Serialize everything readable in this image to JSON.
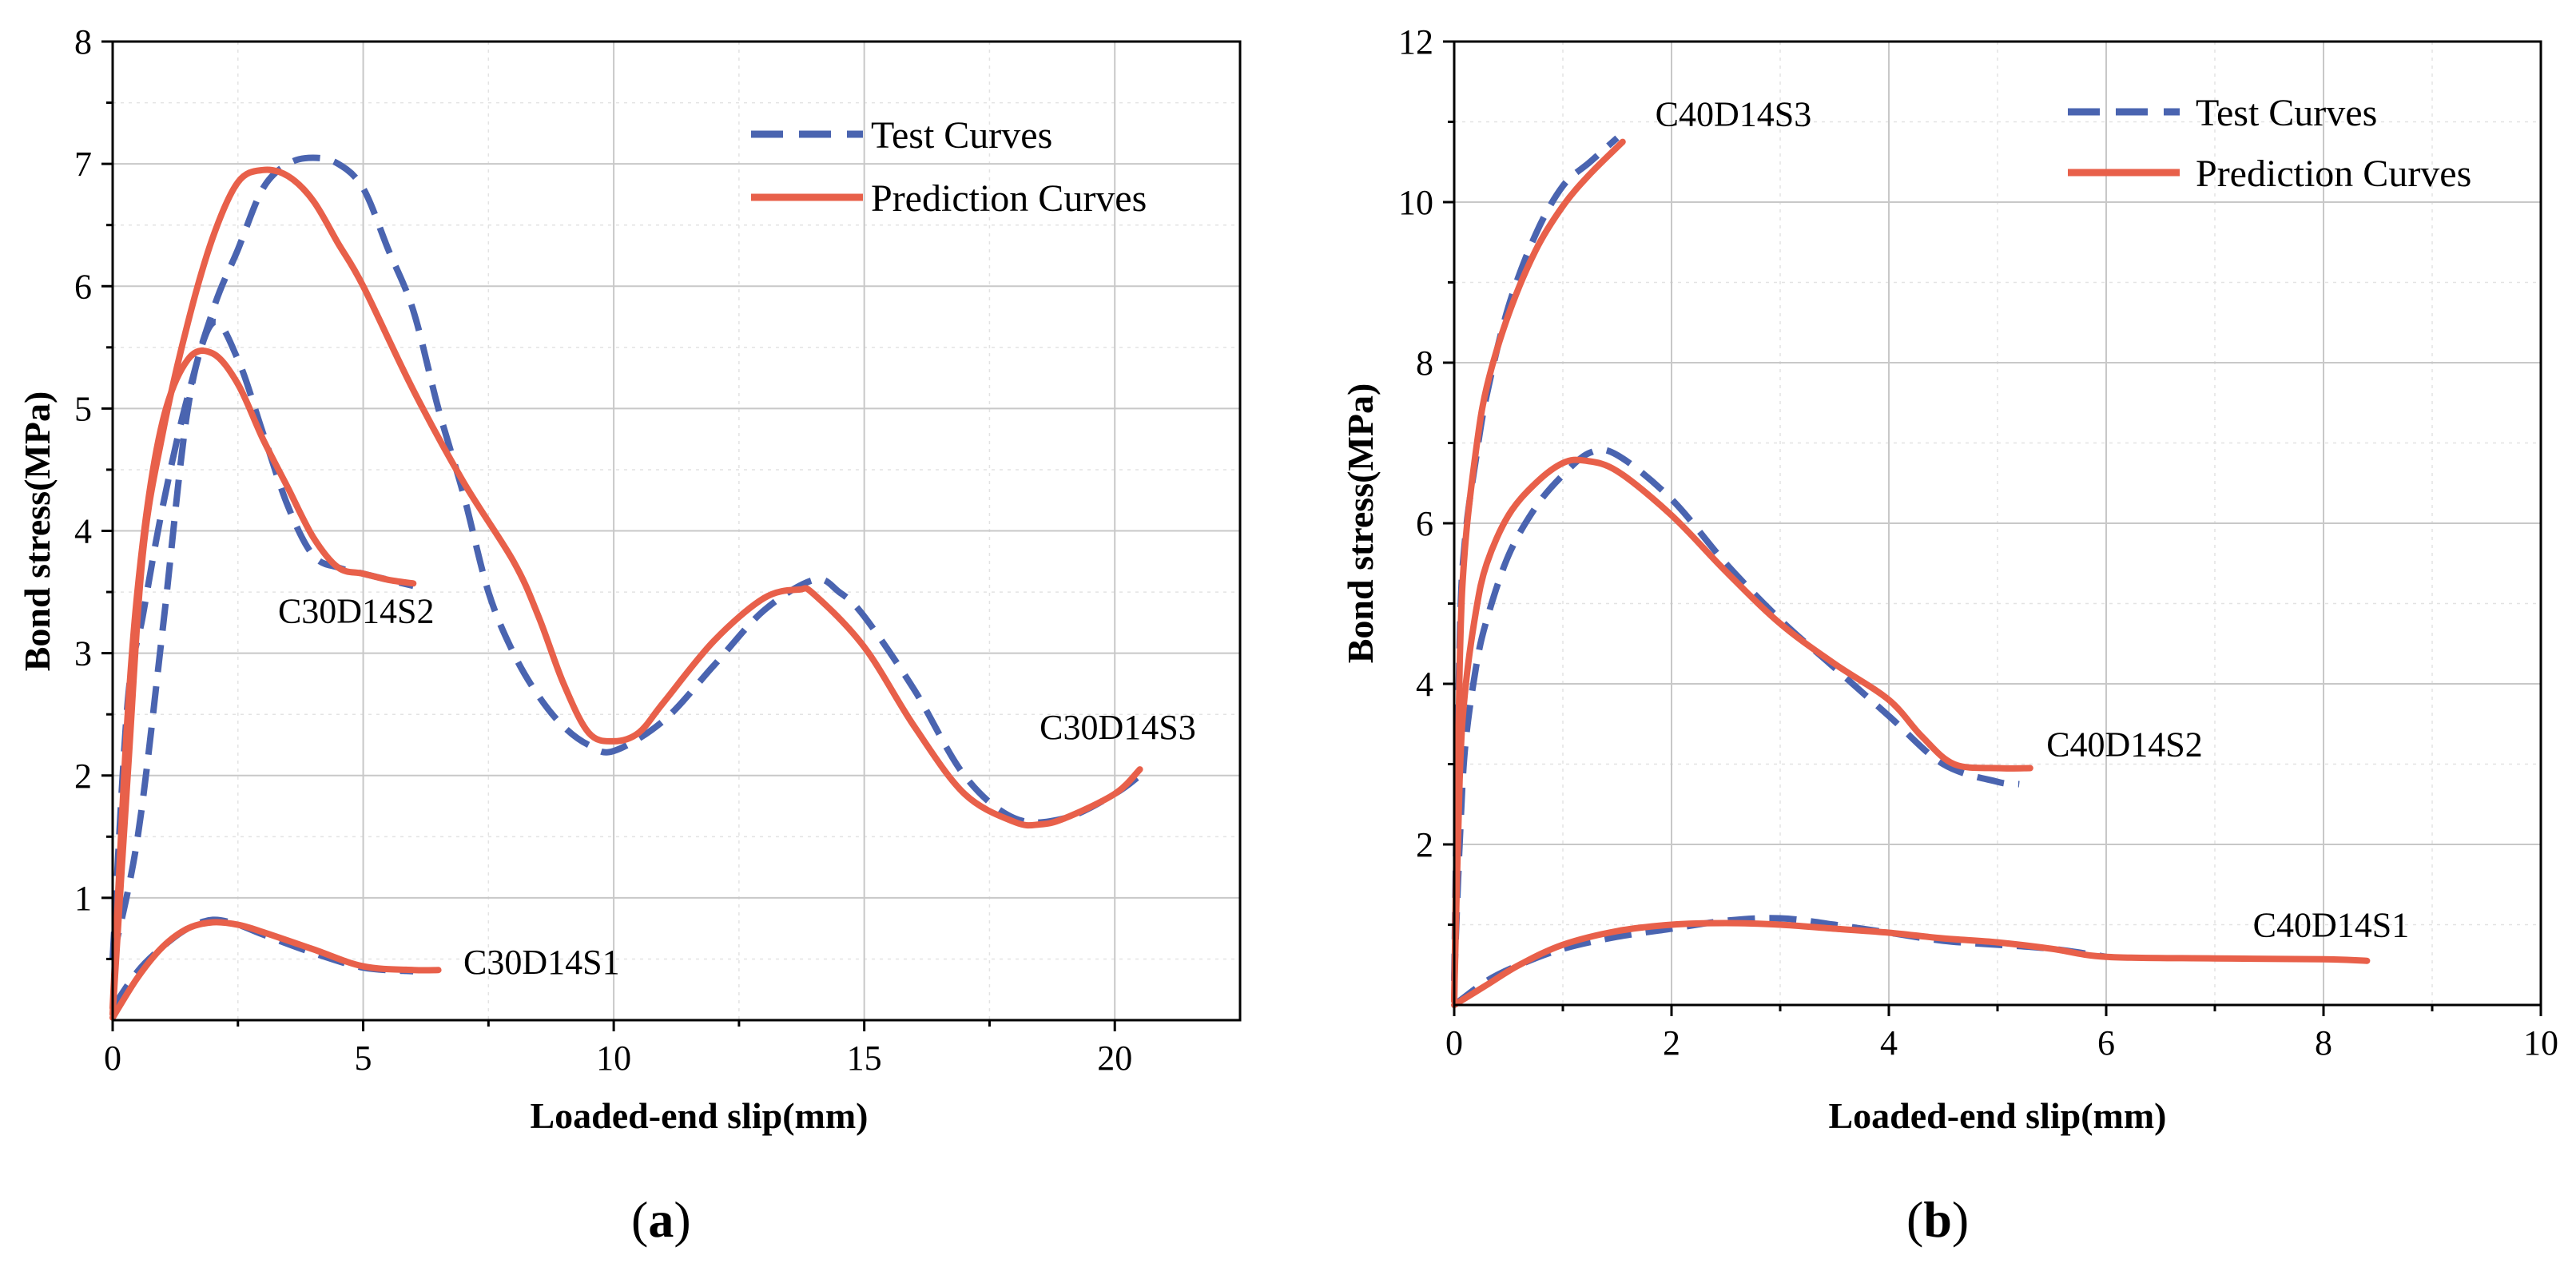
{
  "colors": {
    "test": "#4a64b0",
    "prediction": "#e8604a",
    "grid": "#c8c8c8",
    "minor_grid": "#e3e3e3"
  },
  "chart_data": [
    {
      "id": "a",
      "type": "line",
      "panel_label": "a",
      "xlabel": "Loaded-end slip(mm)",
      "ylabel": "Bond stress(MPa)",
      "xlim": [
        0,
        22.5
      ],
      "ylim": [
        0,
        8
      ],
      "xticks": [
        0,
        5,
        10,
        15,
        20
      ],
      "yticks": [
        1,
        2,
        3,
        4,
        5,
        6,
        7,
        8
      ],
      "show_zero_y": false,
      "legend": {
        "position": "top-right",
        "entries": [
          "Test Curves",
          "Prediction Curves"
        ]
      },
      "series": [
        {
          "name": "C30D14S1",
          "label_at": [
            7,
            0.38
          ],
          "test": {
            "x": [
              0,
              0.5,
              1,
              1.5,
              2,
              2.5,
              3,
              4,
              5,
              6
            ],
            "y": [
              0.1,
              0.4,
              0.6,
              0.75,
              0.82,
              0.78,
              0.7,
              0.55,
              0.43,
              0.4
            ]
          },
          "prediction": {
            "x": [
              0,
              0.5,
              1,
              1.5,
              2,
              2.5,
              3,
              4,
              5,
              6,
              6.5
            ],
            "y": [
              0.02,
              0.35,
              0.6,
              0.75,
              0.8,
              0.78,
              0.72,
              0.58,
              0.44,
              0.41,
              0.41
            ]
          }
        },
        {
          "name": "C30D14S2",
          "label_at": [
            3.3,
            3.25
          ],
          "test": {
            "x": [
              0,
              0.3,
              0.6,
              1,
              1.5,
              2,
              2.5,
              3,
              3.5,
              4,
              4.5,
              5,
              5.5,
              6
            ],
            "y": [
              0.5,
              2.6,
              3.3,
              4.2,
              5.1,
              5.7,
              5.4,
              4.8,
              4.2,
              3.8,
              3.7,
              3.65,
              3.6,
              3.55
            ]
          },
          "prediction": {
            "x": [
              0,
              0.3,
              0.6,
              1,
              1.5,
              2,
              2.5,
              3,
              3.5,
              4,
              4.5,
              5,
              5.5,
              6
            ],
            "y": [
              0.1,
              2.5,
              3.9,
              4.9,
              5.4,
              5.45,
              5.2,
              4.75,
              4.35,
              3.95,
              3.7,
              3.65,
              3.6,
              3.57
            ]
          }
        },
        {
          "name": "C30D14S3",
          "label_at": [
            18.5,
            2.3
          ],
          "test": {
            "x": [
              0,
              0.5,
              1,
              1.5,
              2,
              2.5,
              3,
              3.5,
              4,
              4.5,
              5,
              5.5,
              6,
              6.5,
              7,
              7.5,
              8,
              8.5,
              9,
              9.5,
              10,
              11,
              12,
              13,
              14,
              14.5,
              15,
              16,
              17,
              18,
              19,
              20,
              20.5
            ],
            "y": [
              0.5,
              1.5,
              3.2,
              5.0,
              5.8,
              6.3,
              6.8,
              7.0,
              7.05,
              7.0,
              6.8,
              6.3,
              5.8,
              5.0,
              4.3,
              3.5,
              3.0,
              2.65,
              2.4,
              2.25,
              2.2,
              2.45,
              2.9,
              3.35,
              3.6,
              3.5,
              3.3,
              2.7,
              2.0,
              1.65,
              1.65,
              1.85,
              2.0
            ]
          },
          "prediction": {
            "x": [
              0,
              0.3,
              0.6,
              1,
              1.5,
              2,
              2.5,
              3,
              3.5,
              4,
              4.5,
              5,
              6,
              7,
              8,
              8.5,
              9,
              9.5,
              10,
              10.5,
              11,
              12,
              13,
              13.7,
              14,
              15,
              16,
              17,
              18,
              18.5,
              19,
              20,
              20.5
            ],
            "y": [
              0.05,
              2.0,
              3.8,
              4.8,
              5.7,
              6.4,
              6.85,
              6.95,
              6.9,
              6.7,
              6.35,
              6.0,
              5.15,
              4.4,
              3.75,
              3.3,
              2.75,
              2.35,
              2.28,
              2.35,
              2.6,
              3.1,
              3.45,
              3.52,
              3.48,
              3.05,
              2.4,
              1.85,
              1.62,
              1.6,
              1.65,
              1.85,
              2.05
            ]
          }
        }
      ]
    },
    {
      "id": "b",
      "type": "line",
      "panel_label": "b",
      "xlabel": "Loaded-end slip(mm)",
      "ylabel": "Bond stress(MPa)",
      "xlim": [
        0,
        10
      ],
      "ylim": [
        0,
        12
      ],
      "xticks": [
        0,
        2,
        4,
        6,
        8,
        10
      ],
      "yticks": [
        2,
        4,
        6,
        8,
        10,
        12
      ],
      "show_zero_y": true,
      "legend": {
        "position": "top-right",
        "entries": [
          "Test Curves",
          "Prediction Curves"
        ]
      },
      "series": [
        {
          "name": "C40D14S1",
          "label_at": [
            7.35,
            0.85
          ],
          "test": {
            "x": [
              0,
              0.3,
              0.6,
              1,
              1.5,
              2,
              2.5,
              3,
              3.5,
              4,
              4.5,
              5,
              5.5,
              6
            ],
            "y": [
              0,
              0.3,
              0.5,
              0.7,
              0.85,
              0.95,
              1.05,
              1.08,
              1.0,
              0.9,
              0.8,
              0.75,
              0.7,
              0.6
            ]
          },
          "prediction": {
            "x": [
              0,
              0.3,
              0.6,
              1,
              1.5,
              2,
              2.5,
              3,
              3.5,
              4,
              4.5,
              5,
              5.5,
              6,
              7,
              8,
              8.4
            ],
            "y": [
              0,
              0.25,
              0.5,
              0.75,
              0.92,
              1.0,
              1.02,
              1.0,
              0.95,
              0.9,
              0.83,
              0.78,
              0.7,
              0.6,
              0.58,
              0.57,
              0.55
            ]
          }
        },
        {
          "name": "C40D14S2",
          "label_at": [
            5.45,
            3.1
          ],
          "test": {
            "x": [
              0,
              0.05,
              0.1,
              0.2,
              0.3,
              0.5,
              0.75,
              1,
              1.25,
              1.5,
              2,
              2.5,
              3,
              3.5,
              4,
              4.5,
              5,
              5.2
            ],
            "y": [
              0.3,
              2.0,
              3.2,
              4.2,
              4.8,
              5.6,
              6.2,
              6.6,
              6.88,
              6.85,
              6.3,
              5.5,
              4.8,
              4.2,
              3.6,
              3.0,
              2.78,
              2.75
            ]
          },
          "prediction": {
            "x": [
              0,
              0.05,
              0.1,
              0.2,
              0.3,
              0.5,
              0.75,
              1,
              1.2,
              1.5,
              2,
              2.5,
              3,
              3.5,
              4,
              4.3,
              4.6,
              5,
              5.3
            ],
            "y": [
              0.05,
              2.8,
              3.9,
              4.9,
              5.5,
              6.1,
              6.5,
              6.75,
              6.78,
              6.65,
              6.1,
              5.4,
              4.75,
              4.25,
              3.8,
              3.35,
              3.0,
              2.95,
              2.95
            ]
          }
        },
        {
          "name": "C40D14S3",
          "label_at": [
            1.85,
            10.95
          ],
          "test": {
            "x": [
              0,
              0.05,
              0.1,
              0.2,
              0.3,
              0.5,
              0.75,
              1,
              1.25,
              1.5
            ],
            "y": [
              0.3,
              4.5,
              5.8,
              6.8,
              7.6,
              8.7,
              9.6,
              10.2,
              10.5,
              10.8
            ]
          },
          "prediction": {
            "x": [
              0,
              0.05,
              0.1,
              0.2,
              0.3,
              0.5,
              0.75,
              1,
              1.25,
              1.55
            ],
            "y": [
              0.05,
              4.2,
              5.7,
              6.9,
              7.7,
              8.6,
              9.4,
              9.95,
              10.35,
              10.75
            ]
          }
        }
      ]
    }
  ]
}
